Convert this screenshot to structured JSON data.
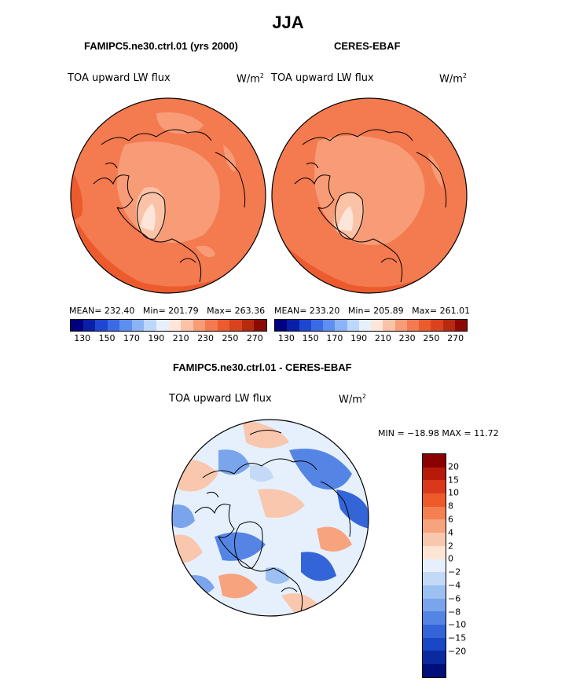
{
  "page_title": "JJA",
  "panels": {
    "model": {
      "case": "FAMIPC5.ne30.ctrl.01 (yrs 2000)",
      "variable": "TOA upward LW flux",
      "units_base": "W/m",
      "units_exp": "2",
      "mean_label": "MEAN=",
      "mean": "232.40",
      "min_label": "Min=",
      "min": "201.79",
      "max_label": "Max=",
      "max": "263.36"
    },
    "obs": {
      "case": "CERES-EBAF",
      "variable": "TOA upward LW flux",
      "units_base": "W/m",
      "units_exp": "2",
      "mean_label": "MEAN=",
      "mean": "233.20",
      "min_label": "Min=",
      "min": "205.89",
      "max_label": "Max=",
      "max": "261.01"
    },
    "diff": {
      "case": "FAMIPC5.ne30.ctrl.01 - CERES-EBAF",
      "variable": "TOA upward LW flux",
      "units_base": "W/m",
      "units_exp": "2",
      "minmax": "MIN = −18.98 MAX =  11.72"
    }
  },
  "abs_colorbar": {
    "colors": [
      "#00007f",
      "#0a1fa8",
      "#1f46d1",
      "#3c6ae6",
      "#5d8ef0",
      "#8cb3f5",
      "#bcd7fa",
      "#e6f0fc",
      "#fde6d9",
      "#fac2a6",
      "#f79c76",
      "#f47a4f",
      "#ec5b2e",
      "#d9431d",
      "#b82a10",
      "#8c0a05"
    ],
    "labels": [
      "130",
      "150",
      "170",
      "190",
      "210",
      "230",
      "250",
      "270"
    ]
  },
  "diff_colorbar": {
    "colors": [
      "#8b0000",
      "#b81a0a",
      "#d9381a",
      "#ee5a2a",
      "#f47f4f",
      "#f7a37e",
      "#f9c7ad",
      "#fde5d6",
      "#e6f0fc",
      "#c3daf7",
      "#9cc0f2",
      "#7aa5ec",
      "#5585e4",
      "#3465d8",
      "#1a47c4",
      "#0a2aa0",
      "#00107a"
    ],
    "labels": [
      "20",
      "15",
      "10",
      "8",
      "6",
      "4",
      "2",
      "0",
      "−2",
      "−4",
      "−6",
      "−8",
      "−10",
      "−15",
      "−20"
    ]
  },
  "icons": {
    "map_model": "polar-stereographic-map",
    "map_obs": "polar-stereographic-map",
    "map_diff": "polar-stereographic-map"
  }
}
